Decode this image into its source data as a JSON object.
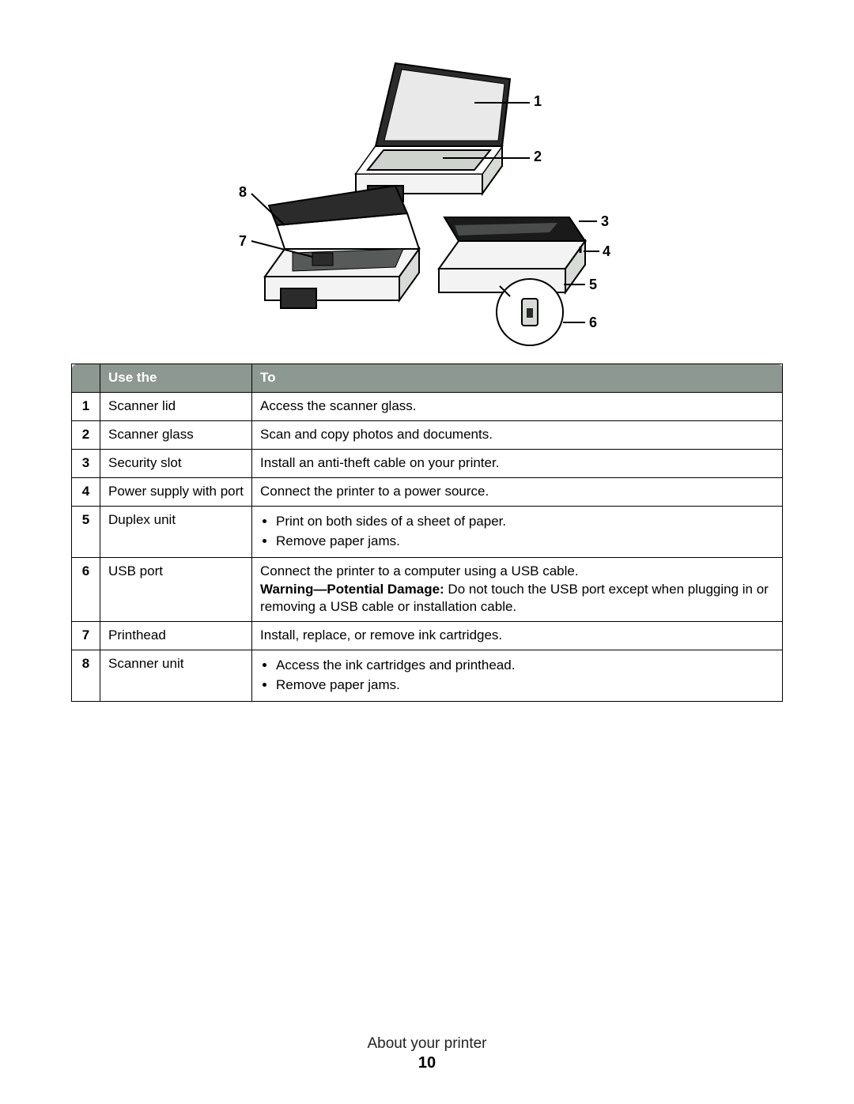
{
  "diagram": {
    "callouts": [
      "1",
      "2",
      "3",
      "4",
      "5",
      "6",
      "7",
      "8"
    ],
    "line_color": "#000000",
    "body_fill": "#f2f3f2",
    "dark_fill": "#2b2b2b",
    "mid_fill": "#575a59"
  },
  "table": {
    "header_bg": "#8d9892",
    "header_fg": "#ffffff",
    "headers": {
      "num": "",
      "use_the": "Use the",
      "to": "To"
    },
    "rows": [
      {
        "num": "1",
        "part": "Scanner lid",
        "desc": {
          "type": "text",
          "text": "Access the scanner glass."
        }
      },
      {
        "num": "2",
        "part": "Scanner glass",
        "desc": {
          "type": "text",
          "text": "Scan and copy photos and documents."
        }
      },
      {
        "num": "3",
        "part": "Security slot",
        "desc": {
          "type": "text",
          "text": "Install an anti-theft cable on your printer."
        }
      },
      {
        "num": "4",
        "part": "Power supply with port",
        "desc": {
          "type": "text",
          "text": "Connect the printer to a power source."
        }
      },
      {
        "num": "5",
        "part": "Duplex unit",
        "desc": {
          "type": "list",
          "items": [
            "Print on both sides of a sheet of paper.",
            "Remove paper jams."
          ]
        }
      },
      {
        "num": "6",
        "part": "USB port",
        "desc": {
          "type": "mixed",
          "text": "Connect the printer to a computer using a USB cable.",
          "warning_label": "Warning—Potential Damage:",
          "warning_text": " Do not touch the USB port except when plugging in or removing a USB cable or installation cable."
        }
      },
      {
        "num": "7",
        "part": "Printhead",
        "desc": {
          "type": "text",
          "text": "Install, replace, or remove ink cartridges."
        }
      },
      {
        "num": "8",
        "part": "Scanner unit",
        "desc": {
          "type": "list",
          "items": [
            "Access the ink cartridges and printhead.",
            "Remove paper jams."
          ]
        }
      }
    ]
  },
  "footer": {
    "section": "About your printer",
    "page": "10"
  }
}
